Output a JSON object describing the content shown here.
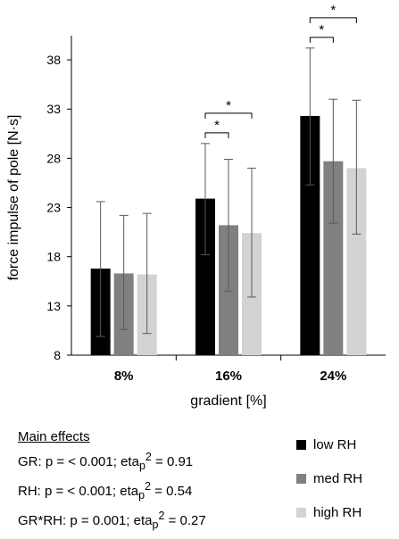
{
  "chart_data": {
    "type": "bar",
    "title": "",
    "xlabel": "gradient [%]",
    "ylabel": "force impulse of pole [N·s]",
    "ylim": [
      8,
      40
    ],
    "yticks": [
      8,
      13,
      18,
      23,
      28,
      33,
      38
    ],
    "grid": false,
    "legend_position": "bottom-right",
    "categories": [
      "8%",
      "16%",
      "24%"
    ],
    "series": [
      {
        "name": "low RH",
        "color": "#000000",
        "values": [
          16.8,
          23.9,
          32.3
        ],
        "errors": [
          [
            9.9,
            23.6
          ],
          [
            18.2,
            29.5
          ],
          [
            25.3,
            39.2
          ]
        ]
      },
      {
        "name": "med RH",
        "color": "#808080",
        "values": [
          16.3,
          21.2,
          27.7
        ],
        "errors": [
          [
            10.6,
            22.2
          ],
          [
            14.5,
            27.9
          ],
          [
            21.4,
            34.0
          ]
        ]
      },
      {
        "name": "high RH",
        "color": "#d3d3d3",
        "values": [
          16.2,
          20.4,
          27.0
        ],
        "errors": [
          [
            10.2,
            22.4
          ],
          [
            13.9,
            27.0
          ],
          [
            20.3,
            33.9
          ]
        ]
      }
    ],
    "significance": [
      {
        "category": 1,
        "from": 0,
        "to": 1,
        "label": "*"
      },
      {
        "category": 1,
        "from": 0,
        "to": 2,
        "label": "*"
      },
      {
        "category": 2,
        "from": 0,
        "to": 1,
        "label": "*"
      },
      {
        "category": 2,
        "from": 0,
        "to": 2,
        "label": "*"
      }
    ]
  },
  "main_effects": {
    "heading": "Main effects",
    "rows": [
      {
        "prefix": "GR: p = < 0.001; eta",
        "sub": "p",
        "sup": "2",
        "suffix": " = 0.91"
      },
      {
        "prefix": "RH:  p = < 0.001;  eta",
        "sub": "p",
        "sup": "2",
        "suffix": " = 0.54"
      },
      {
        "prefix": "GR*RH: p = 0.001; eta",
        "sub": "p",
        "sup": "2",
        "suffix": " = 0.27"
      }
    ]
  }
}
